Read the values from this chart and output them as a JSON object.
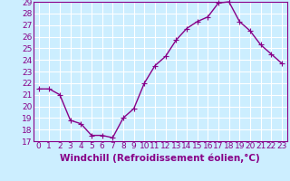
{
  "x": [
    0,
    1,
    2,
    3,
    4,
    5,
    6,
    7,
    8,
    9,
    10,
    11,
    12,
    13,
    14,
    15,
    16,
    17,
    18,
    19,
    20,
    21,
    22,
    23
  ],
  "y": [
    21.5,
    21.5,
    21.0,
    18.8,
    18.5,
    17.5,
    17.5,
    17.3,
    19.0,
    19.8,
    22.0,
    23.5,
    24.3,
    25.7,
    26.7,
    27.3,
    27.7,
    28.9,
    29.0,
    27.3,
    26.5,
    25.3,
    24.5,
    23.7
  ],
  "line_color": "#880088",
  "marker": "+",
  "bg_color": "#cceeff",
  "grid_color": "#ffffff",
  "xlabel": "Windchill (Refroidissement éolien,°C)",
  "xlabel_color": "#880088",
  "tick_color": "#880088",
  "ylim": [
    17,
    29
  ],
  "xlim": [
    -0.5,
    23.5
  ],
  "yticks": [
    17,
    18,
    19,
    20,
    21,
    22,
    23,
    24,
    25,
    26,
    27,
    28,
    29
  ],
  "xticks": [
    0,
    1,
    2,
    3,
    4,
    5,
    6,
    7,
    8,
    9,
    10,
    11,
    12,
    13,
    14,
    15,
    16,
    17,
    18,
    19,
    20,
    21,
    22,
    23
  ],
  "font_size": 6.5,
  "xlabel_font_size": 7.5,
  "line_width": 1.0,
  "marker_size": 4
}
